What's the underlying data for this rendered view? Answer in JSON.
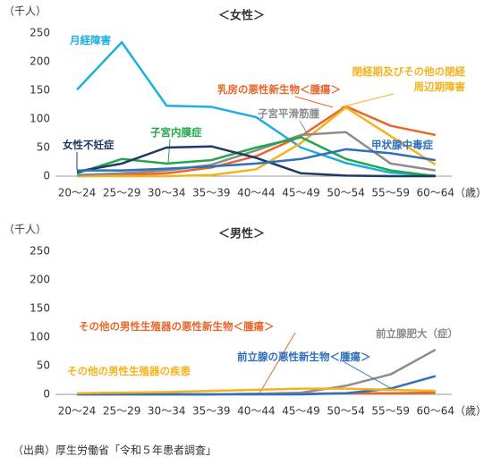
{
  "chart_data": [
    {
      "type": "line",
      "title": "＜女性＞",
      "y_label": "（千人）",
      "x_label": "（歳）",
      "categories": [
        "20～24",
        "25～29",
        "30～34",
        "35～39",
        "40～44",
        "45～49",
        "50～54",
        "55～59",
        "60～64"
      ],
      "ylim": [
        0,
        250
      ],
      "yticks": [
        0,
        50,
        100,
        150,
        200,
        250
      ],
      "series": [
        {
          "name": "月経障害",
          "color": "#1cafe0",
          "values": [
            151,
            234,
            123,
            121,
            103,
            50,
            23,
            6,
            1
          ]
        },
        {
          "name": "乳房の悪性新生物＜腫瘍＞",
          "color": "#e8662a",
          "values": [
            0,
            2,
            5,
            15,
            35,
            70,
            122,
            88,
            72
          ]
        },
        {
          "name": "閉経期及びその他の閉経\n周辺期障害",
          "color": "#f5b21c",
          "values": [
            0,
            0,
            0,
            2,
            12,
            58,
            120,
            70,
            20
          ]
        },
        {
          "name": "子宮平滑筋腫",
          "color": "#8c8c8c",
          "values": [
            2,
            5,
            10,
            20,
            45,
            72,
            77,
            22,
            10
          ]
        },
        {
          "name": "子宮内膜症",
          "color": "#1fa84a",
          "values": [
            5,
            30,
            22,
            28,
            50,
            68,
            30,
            10,
            0
          ]
        },
        {
          "name": "女性不妊症",
          "color": "#1f3864",
          "values": [
            8,
            22,
            50,
            52,
            32,
            5,
            1,
            0,
            0
          ]
        },
        {
          "name": "甲状腺中毒症",
          "color": "#2e6fbe",
          "values": [
            10,
            10,
            13,
            17,
            22,
            30,
            47,
            40,
            28
          ]
        }
      ]
    },
    {
      "type": "line",
      "title": "＜男性＞",
      "y_label": "（千人）",
      "x_label": "（歳）",
      "categories": [
        "20～24",
        "25～29",
        "30～34",
        "35～39",
        "40～44",
        "45～49",
        "50～54",
        "55～59",
        "60～64"
      ],
      "ylim": [
        0,
        250
      ],
      "yticks": [
        0,
        50,
        100,
        150,
        200,
        250
      ],
      "series": [
        {
          "name": "その他の男性生殖器の悪性新生物＜腫瘍＞",
          "color": "#e8662a",
          "values": [
            0,
            0,
            0,
            0,
            1,
            1,
            2,
            2,
            3
          ]
        },
        {
          "name": "前立腺肥大（症）",
          "color": "#8c8c8c",
          "values": [
            0,
            0,
            0,
            0,
            1,
            3,
            15,
            35,
            78
          ]
        },
        {
          "name": "前立腺の悪性新生物＜腫瘍＞",
          "color": "#2e6fbe",
          "values": [
            0,
            0,
            0,
            0,
            0,
            0,
            2,
            10,
            32
          ]
        },
        {
          "name": "その他の男性生殖器の疾患",
          "color": "#f5b21c",
          "values": [
            2,
            3,
            4,
            6,
            8,
            10,
            10,
            8,
            6
          ]
        }
      ]
    }
  ],
  "source": "（出典）厚生労働省「令和５年患者調査」"
}
